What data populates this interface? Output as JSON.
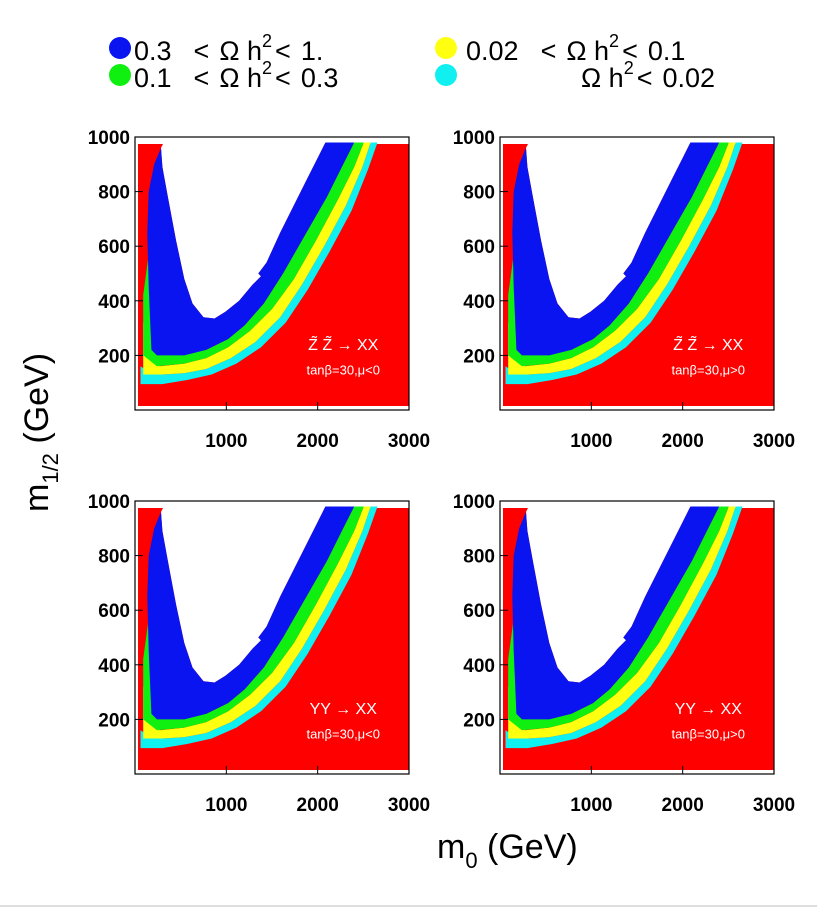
{
  "chart_data": [
    {
      "type": "contour",
      "panel": "top-left",
      "annotation": {
        "process": "Z̃ Z̃ → XX",
        "params": "tanβ=30,μ<0"
      },
      "xlim": [
        0,
        3000
      ],
      "ylim": [
        0,
        1000
      ],
      "x_ticks": [
        1000,
        2000,
        3000
      ],
      "y_ticks": [
        200,
        400,
        600,
        800,
        1000
      ]
    },
    {
      "type": "contour",
      "panel": "top-right",
      "annotation": {
        "process": "Z̃ Z̃ → XX",
        "params": "tanβ=30,μ>0"
      },
      "xlim": [
        0,
        3000
      ],
      "ylim": [
        0,
        1000
      ],
      "x_ticks": [
        1000,
        2000,
        3000
      ],
      "y_ticks": [
        200,
        400,
        600,
        800,
        1000
      ]
    },
    {
      "type": "contour",
      "panel": "bottom-left",
      "annotation": {
        "process": "YY → XX",
        "params": "tanβ=30,μ<0"
      },
      "xlim": [
        0,
        3000
      ],
      "ylim": [
        0,
        1000
      ],
      "x_ticks": [
        1000,
        2000,
        3000
      ],
      "y_ticks": [
        200,
        400,
        600,
        800,
        1000
      ]
    },
    {
      "type": "contour",
      "panel": "bottom-right",
      "annotation": {
        "process": "YY → XX",
        "params": "tanβ=30,μ>0"
      },
      "xlim": [
        0,
        3000
      ],
      "ylim": [
        0,
        1000
      ],
      "x_ticks": [
        1000,
        2000,
        3000
      ],
      "y_ticks": [
        200,
        400,
        600,
        800,
        1000
      ]
    }
  ],
  "axes": {
    "xlabel": {
      "main": "m",
      "sub": "0",
      "unit": " (GeV)"
    },
    "ylabel": {
      "main": "m",
      "sub": "1/2",
      "unit": " (GeV)"
    }
  },
  "legend": [
    {
      "color": "#0a14f0",
      "lo": "0.3",
      "op1": "<",
      "mid": "Ω h",
      "sup": "2",
      "op2": "<",
      "hi": "1."
    },
    {
      "color": "#ffff10",
      "lo": "0.02",
      "op1": "<",
      "mid": "Ω h",
      "sup": "2",
      "op2": "<",
      "hi": "0.1"
    },
    {
      "color": "#10f010",
      "lo": "0.1",
      "op1": "<",
      "mid": "Ω h",
      "sup": "2",
      "op2": "<",
      "hi": "0.3"
    },
    {
      "color": "#10f0f0",
      "lo": "",
      "op1": "",
      "mid": "Ω h",
      "sup": "2",
      "op2": "<",
      "hi": "0.02"
    }
  ],
  "colors": {
    "excluded": "#ff0000",
    "band_03_1": "#0a14f0",
    "band_01_03": "#10f010",
    "band_002_01": "#ffff10",
    "band_lt_002": "#10f0f0",
    "allowed": "#ffffff"
  }
}
